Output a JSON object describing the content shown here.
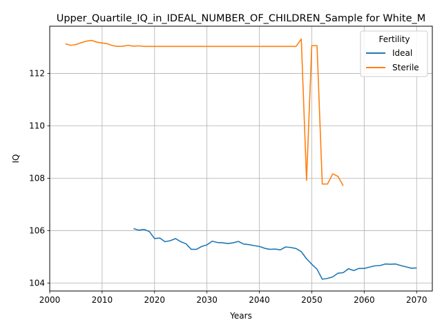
{
  "chart_data": {
    "type": "line",
    "title": "Upper_Quartile_IQ_in_IDEAL_NUMBER_OF_CHILDREN_Sample for White_M",
    "xlabel": "Years",
    "ylabel": "IQ",
    "xlim": [
      2000,
      2073
    ],
    "ylim": [
      103.7,
      113.8
    ],
    "xticks": [
      2000,
      2010,
      2020,
      2030,
      2040,
      2050,
      2060,
      2070
    ],
    "yticks": [
      104,
      106,
      108,
      110,
      112
    ],
    "grid": true,
    "legend": {
      "title": "Fertility",
      "position": "top-right"
    },
    "series": [
      {
        "name": "Ideal",
        "color": "#1f77b4",
        "points": [
          [
            2016,
            106.08
          ],
          [
            2017,
            106.02
          ],
          [
            2018,
            106.05
          ],
          [
            2019,
            105.97
          ],
          [
            2020,
            105.7
          ],
          [
            2021,
            105.72
          ],
          [
            2022,
            105.58
          ],
          [
            2023,
            105.62
          ],
          [
            2024,
            105.7
          ],
          [
            2025,
            105.58
          ],
          [
            2026,
            105.5
          ],
          [
            2027,
            105.29
          ],
          [
            2028,
            105.29
          ],
          [
            2029,
            105.4
          ],
          [
            2030,
            105.46
          ],
          [
            2031,
            105.6
          ],
          [
            2032,
            105.55
          ],
          [
            2033,
            105.54
          ],
          [
            2034,
            105.51
          ],
          [
            2035,
            105.54
          ],
          [
            2036,
            105.59
          ],
          [
            2037,
            105.49
          ],
          [
            2038,
            105.47
          ],
          [
            2039,
            105.43
          ],
          [
            2040,
            105.4
          ],
          [
            2041,
            105.33
          ],
          [
            2042,
            105.29
          ],
          [
            2043,
            105.3
          ],
          [
            2044,
            105.27
          ],
          [
            2045,
            105.38
          ],
          [
            2046,
            105.36
          ],
          [
            2047,
            105.32
          ],
          [
            2048,
            105.2
          ],
          [
            2049,
            104.93
          ],
          [
            2050,
            104.72
          ],
          [
            2051,
            104.53
          ],
          [
            2052,
            104.15
          ],
          [
            2053,
            104.18
          ],
          [
            2054,
            104.24
          ],
          [
            2055,
            104.38
          ],
          [
            2056,
            104.4
          ],
          [
            2057,
            104.55
          ],
          [
            2058,
            104.48
          ],
          [
            2059,
            104.56
          ],
          [
            2060,
            104.56
          ],
          [
            2061,
            104.61
          ],
          [
            2062,
            104.66
          ],
          [
            2063,
            104.67
          ],
          [
            2064,
            104.73
          ],
          [
            2065,
            104.72
          ],
          [
            2066,
            104.73
          ],
          [
            2067,
            104.67
          ],
          [
            2068,
            104.62
          ],
          [
            2069,
            104.57
          ],
          [
            2070,
            104.58
          ]
        ]
      },
      {
        "name": "Sterile",
        "color": "#ff7f0e",
        "points": [
          [
            2003,
            113.13
          ],
          [
            2004,
            113.07
          ],
          [
            2005,
            113.1
          ],
          [
            2006,
            113.17
          ],
          [
            2007,
            113.23
          ],
          [
            2008,
            113.26
          ],
          [
            2009,
            113.19
          ],
          [
            2010,
            113.16
          ],
          [
            2011,
            113.13
          ],
          [
            2012,
            113.06
          ],
          [
            2013,
            113.03
          ],
          [
            2014,
            113.04
          ],
          [
            2015,
            113.07
          ],
          [
            2016,
            113.04
          ],
          [
            2017,
            113.05
          ],
          [
            2018,
            113.03
          ],
          [
            2019,
            113.03
          ],
          [
            2020,
            113.03
          ],
          [
            2025,
            113.03
          ],
          [
            2030,
            113.03
          ],
          [
            2035,
            113.03
          ],
          [
            2040,
            113.03
          ],
          [
            2045,
            113.03
          ],
          [
            2047,
            113.03
          ],
          [
            2048,
            113.31
          ],
          [
            2049,
            107.92
          ],
          [
            2050,
            113.06
          ],
          [
            2051,
            113.06
          ],
          [
            2052,
            107.78
          ],
          [
            2053,
            107.78
          ],
          [
            2054,
            108.17
          ],
          [
            2055,
            108.07
          ],
          [
            2056,
            107.71
          ]
        ]
      }
    ]
  }
}
